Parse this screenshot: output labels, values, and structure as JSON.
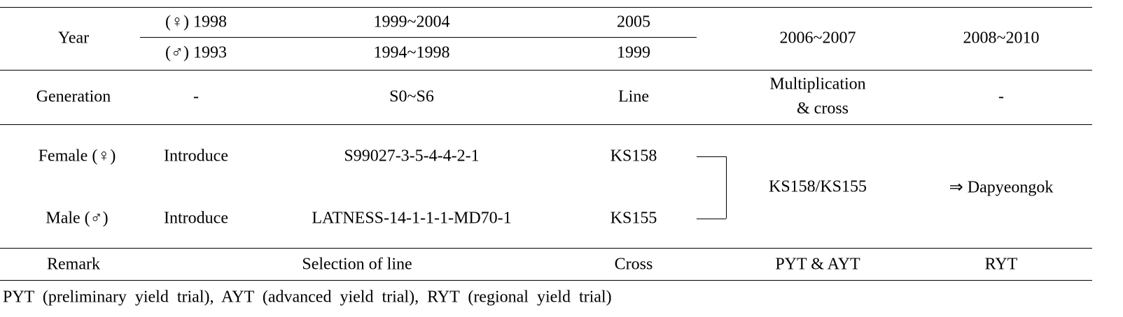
{
  "year": {
    "label": "Year",
    "female": [
      "(♀) 1998",
      "1999~2004",
      "2005"
    ],
    "male": [
      "(♂) 1993",
      "1994~1998",
      "1999"
    ],
    "spanning": [
      "2006~2007",
      "2008~2010"
    ]
  },
  "generation": {
    "label": "Generation",
    "cells": [
      "-",
      "S0~S6",
      "Line",
      [
        "Multiplication",
        "& cross"
      ],
      "-"
    ]
  },
  "parents": {
    "female": {
      "label": "Female (♀)",
      "cells": [
        "Introduce",
        "S99027-3-5-4-4-2-1",
        "KS158"
      ]
    },
    "male": {
      "label": "Male (♂)",
      "cells": [
        "Introduce",
        "LATNESS-14-1-1-1-MD70-1",
        "KS155"
      ]
    },
    "cross": "KS158/KS155",
    "variety": "⇒ Dapyeongok"
  },
  "remark": {
    "label": "Remark",
    "cells": [
      "Selection of line",
      "Cross",
      "PYT & AYT",
      "RYT"
    ]
  },
  "footnote": "PYT (preliminary yield trial), AYT (advanced yield trial), RYT (regional yield trial)"
}
